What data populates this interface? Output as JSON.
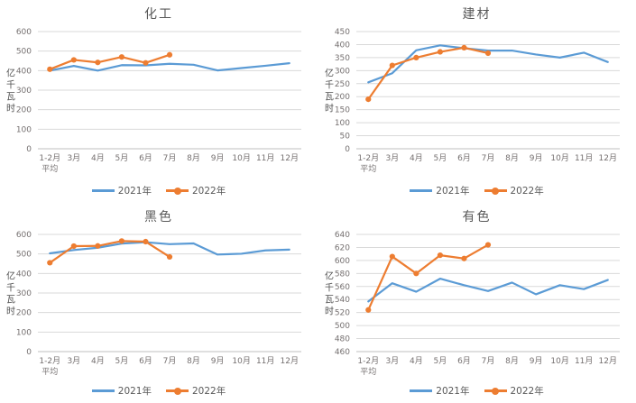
{
  "page": {
    "background": "#ffffff",
    "grid_color": "#d9d9d9",
    "axis_line_color": "#bfbfbf"
  },
  "chart_data": [
    {
      "type": "line",
      "title": "化工",
      "ylabel": "亿千瓦时",
      "ylim": [
        0,
        600
      ],
      "yticks": [
        0,
        100,
        200,
        300,
        400,
        500,
        600
      ],
      "grid": true,
      "legend_position": "bottom",
      "categories": [
        "1-2月\n平均",
        "3月",
        "4月",
        "5月",
        "6月",
        "7月",
        "8月",
        "9月",
        "10月",
        "11月",
        "12月"
      ],
      "series": [
        {
          "name": "2021年",
          "color": "#5B9BD5",
          "marker": false,
          "values": [
            400,
            424,
            400,
            428,
            427,
            435,
            430,
            401,
            413,
            425,
            438
          ]
        },
        {
          "name": "2022年",
          "color": "#ED7D31",
          "marker": true,
          "values": [
            407,
            455,
            442,
            470,
            440,
            481
          ]
        }
      ]
    },
    {
      "type": "line",
      "title": "建材",
      "ylabel": "亿千瓦时",
      "ylim": [
        0,
        450
      ],
      "yticks": [
        0,
        50,
        100,
        150,
        200,
        250,
        300,
        350,
        400,
        450
      ],
      "grid": true,
      "legend_position": "bottom",
      "categories": [
        "1-2月\n平均",
        "3月",
        "4月",
        "5月",
        "6月",
        "7月",
        "8月",
        "9月",
        "10月",
        "11月",
        "12月"
      ],
      "series": [
        {
          "name": "2021年",
          "color": "#5B9BD5",
          "marker": false,
          "values": [
            255,
            290,
            378,
            397,
            386,
            377,
            377,
            362,
            350,
            369,
            333
          ]
        },
        {
          "name": "2022年",
          "color": "#ED7D31",
          "marker": true,
          "values": [
            190,
            320,
            350,
            372,
            388,
            367
          ]
        }
      ]
    },
    {
      "type": "line",
      "title": "黑色",
      "ylabel": "亿千瓦时",
      "ylim": [
        0,
        600
      ],
      "yticks": [
        0,
        100,
        200,
        300,
        400,
        500,
        600
      ],
      "grid": true,
      "legend_position": "bottom",
      "categories": [
        "1-2月\n平均",
        "3月",
        "4月",
        "5月",
        "6月",
        "7月",
        "8月",
        "9月",
        "10月",
        "11月",
        "12月"
      ],
      "series": [
        {
          "name": "2021年",
          "color": "#5B9BD5",
          "marker": false,
          "values": [
            503,
            520,
            532,
            553,
            560,
            550,
            554,
            497,
            501,
            518,
            522
          ]
        },
        {
          "name": "2022年",
          "color": "#ED7D31",
          "marker": true,
          "values": [
            455,
            540,
            541,
            566,
            563,
            485
          ]
        }
      ]
    },
    {
      "type": "line",
      "title": "有色",
      "ylabel": "亿千瓦时",
      "ylim": [
        460,
        640
      ],
      "yticks": [
        460,
        480,
        500,
        520,
        540,
        560,
        580,
        600,
        620,
        640
      ],
      "grid": true,
      "legend_position": "bottom",
      "categories": [
        "1-2月\n平均",
        "3月",
        "4月",
        "5月",
        "6月",
        "7月",
        "8月",
        "9月",
        "10月",
        "11月",
        "12月"
      ],
      "series": [
        {
          "name": "2021年",
          "color": "#5B9BD5",
          "marker": false,
          "values": [
            537,
            565,
            552,
            572,
            562,
            553,
            566,
            548,
            562,
            556,
            570
          ]
        },
        {
          "name": "2022年",
          "color": "#ED7D31",
          "marker": true,
          "values": [
            524,
            606,
            580,
            608,
            603,
            624
          ]
        }
      ]
    }
  ]
}
